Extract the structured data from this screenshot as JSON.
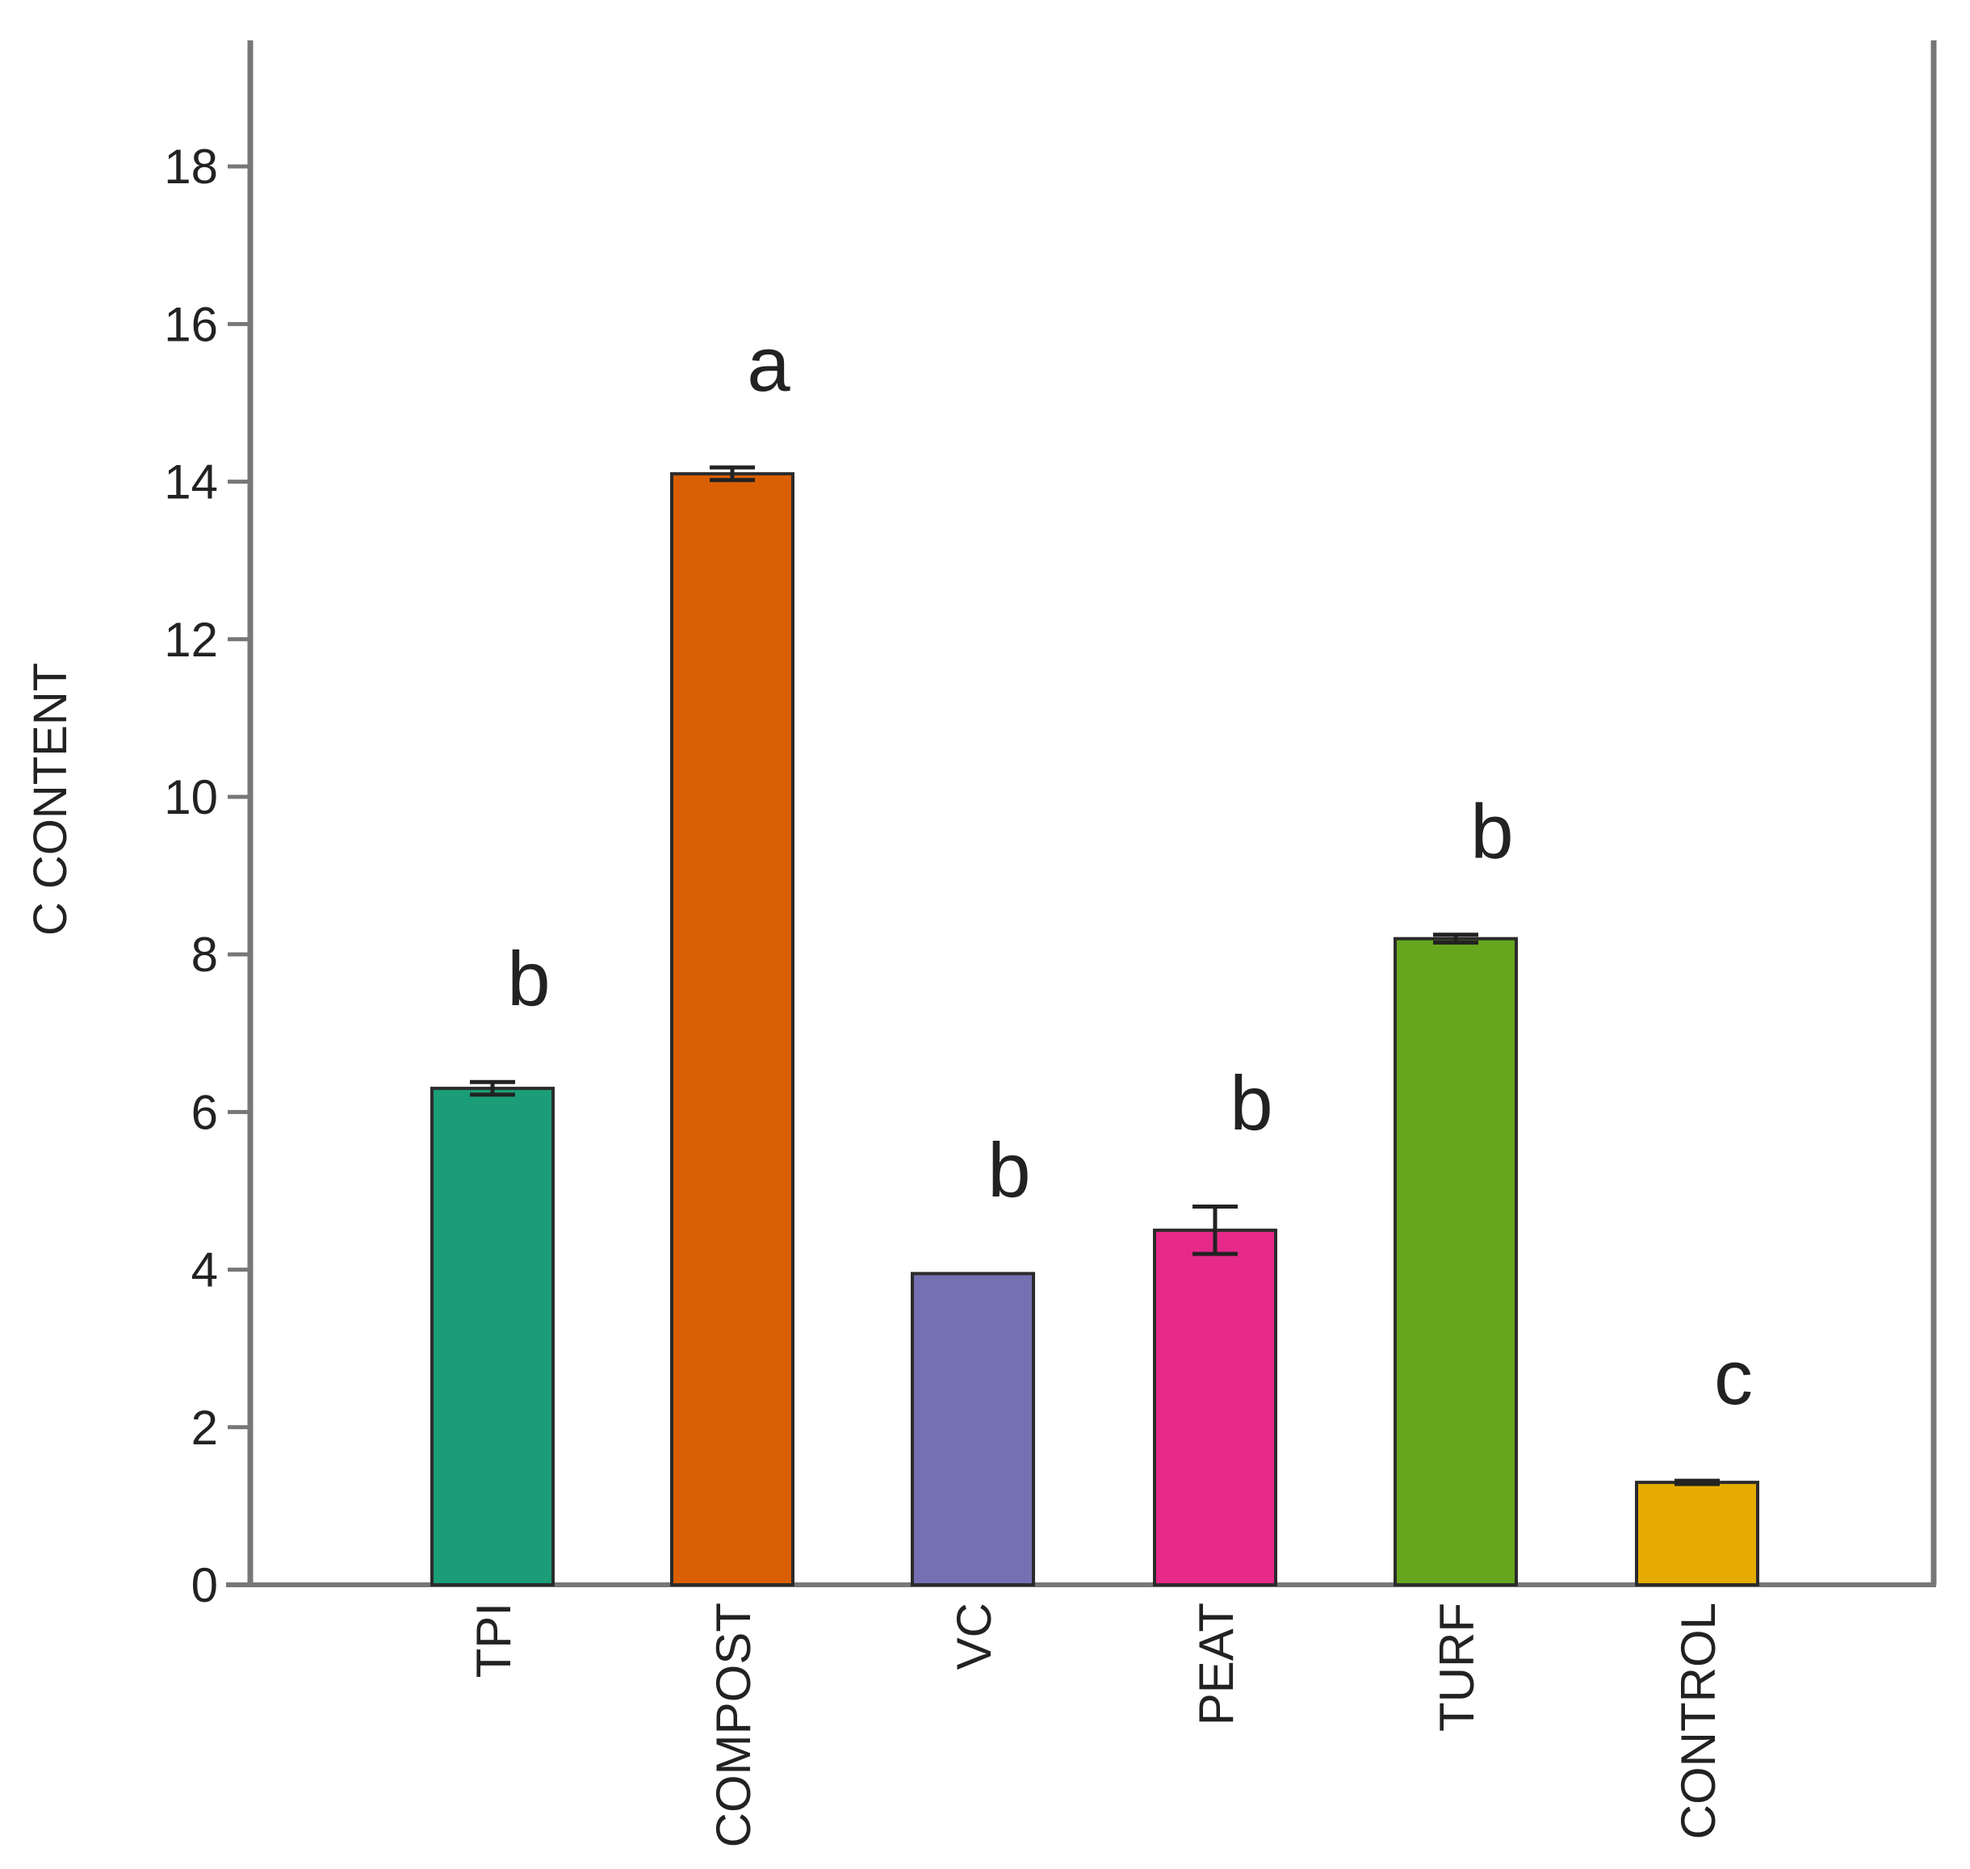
{
  "chart_data": {
    "type": "bar",
    "title": "",
    "xlabel": "",
    "ylabel": "C CONTENT",
    "ylim": [
      0,
      19.6
    ],
    "yticks": [
      0,
      2,
      4,
      6,
      8,
      10,
      12,
      14,
      16,
      18
    ],
    "grid": false,
    "categories": [
      "TPI",
      "COMPOST",
      "VC",
      "PEAT",
      "TURF",
      "CONTROL"
    ],
    "values": [
      6.3,
      14.1,
      3.95,
      4.5,
      8.2,
      1.3
    ],
    "errors": [
      0.08,
      0.08,
      0.0,
      0.3,
      0.05,
      0.02
    ],
    "colors": [
      "#1b9e77",
      "#d95f02",
      "#7570b3",
      "#e7298a",
      "#66a61e",
      "#e6ab02"
    ],
    "annotations": [
      "b",
      "a",
      "b",
      "b",
      "b",
      "c"
    ]
  }
}
